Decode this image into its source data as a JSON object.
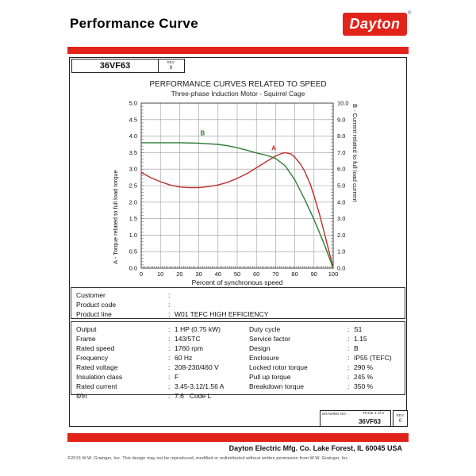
{
  "colors": {
    "brand_red": "#e2231a",
    "torque_red": "#bf2e2e",
    "current_green": "#2e7d33",
    "grid": "#9a9a9a",
    "plot_border": "#444444"
  },
  "header": {
    "title": "Performance Curve",
    "logo_text": "Dayton",
    "logo_reg": "®"
  },
  "doc": {
    "model": "36VF63",
    "rev_label": "REV.",
    "rev_value": "0"
  },
  "chart_data": {
    "type": "line",
    "title": "PERFORMANCE CURVES RELATED TO SPEED",
    "subtitle": "Three-phase Induction Motor - Squirrel Cage",
    "xlabel": "Percent of synchronous speed",
    "grid": true,
    "x_axis": {
      "min": 0,
      "max": 100,
      "step": 10
    },
    "left_axis": {
      "label": "A - Torque related to full load torque",
      "min": 0,
      "max": 5,
      "step": 0.5,
      "color": "#bf2e2e"
    },
    "right_axis": {
      "label": "B - Current related to full load current",
      "min": 0,
      "max": 10,
      "step": 1,
      "color": "#2e7d33"
    },
    "series": [
      {
        "name": "A - Torque related to full load torque",
        "marker_label": "A",
        "axis": "left",
        "color": "#bf2e2e",
        "label_at": {
          "x": 69,
          "y": 3.57
        },
        "points": [
          [
            0,
            2.9
          ],
          [
            5,
            2.74
          ],
          [
            10,
            2.62
          ],
          [
            15,
            2.52
          ],
          [
            20,
            2.46
          ],
          [
            25,
            2.44
          ],
          [
            30,
            2.44
          ],
          [
            35,
            2.47
          ],
          [
            40,
            2.52
          ],
          [
            45,
            2.6
          ],
          [
            50,
            2.72
          ],
          [
            55,
            2.86
          ],
          [
            60,
            3.04
          ],
          [
            65,
            3.22
          ],
          [
            70,
            3.4
          ],
          [
            73,
            3.47
          ],
          [
            75,
            3.5
          ],
          [
            78,
            3.46
          ],
          [
            80,
            3.36
          ],
          [
            83,
            3.15
          ],
          [
            85,
            2.95
          ],
          [
            88,
            2.55
          ],
          [
            90,
            2.2
          ],
          [
            93,
            1.6
          ],
          [
            95,
            1.15
          ],
          [
            97,
            0.7
          ],
          [
            100,
            0.0
          ]
        ]
      },
      {
        "name": "B - Current related to full load current",
        "marker_label": "B",
        "axis": "right",
        "color": "#2e7d33",
        "label_at": {
          "x": 32,
          "y": 8.05
        },
        "points": [
          [
            0,
            7.6
          ],
          [
            10,
            7.6
          ],
          [
            20,
            7.6
          ],
          [
            30,
            7.57
          ],
          [
            40,
            7.5
          ],
          [
            45,
            7.42
          ],
          [
            50,
            7.3
          ],
          [
            55,
            7.15
          ],
          [
            60,
            6.98
          ],
          [
            65,
            6.85
          ],
          [
            70,
            6.65
          ],
          [
            75,
            6.2
          ],
          [
            80,
            5.35
          ],
          [
            85,
            4.2
          ],
          [
            90,
            2.95
          ],
          [
            95,
            1.55
          ],
          [
            100,
            0.0
          ]
        ]
      }
    ]
  },
  "customer_box": {
    "rows": [
      {
        "label": "Customer",
        "value": ""
      },
      {
        "label": "Product code",
        "value": ""
      },
      {
        "label": "Product line",
        "value": "W01 TEFC HIGH EFFICIENCY"
      }
    ]
  },
  "spec_box": {
    "left_rows": [
      {
        "label": "Output",
        "value": "1 HP (0.75 kW)"
      },
      {
        "label": "Frame",
        "value": "143/5TC"
      },
      {
        "label": "Rated speed",
        "value": "1760 rpm"
      },
      {
        "label": "Frequency",
        "value": "60 Hz"
      },
      {
        "label": "Rated voltage",
        "value": "208-230/460 V"
      },
      {
        "label": "Insulation class",
        "value": "F"
      },
      {
        "label": "Rated current",
        "value": "3.45-3.12/1.56 A"
      },
      {
        "label": "Il/In",
        "value": "7.6   Code L"
      }
    ],
    "right_rows": [
      {
        "label": "Duty cycle",
        "value": "S1"
      },
      {
        "label": "Service factor",
        "value": "1.15"
      },
      {
        "label": "Design",
        "value": "B"
      },
      {
        "label": "Enclosure",
        "value": "IP55 (TEFC)"
      },
      {
        "label": "Locked rotor torque",
        "value": "290 %"
      },
      {
        "label": "Pull up torque",
        "value": "245 %"
      },
      {
        "label": "Breakdown torque",
        "value": "350 %"
      }
    ]
  },
  "title_block": {
    "drawing_no_label": "DRAWING NO.",
    "page_label": "PAGE 1 of 2",
    "drawing_no": "36VF63",
    "rev_label": "REV.",
    "rev_value": "0"
  },
  "footer": {
    "company": "Dayton Electric Mfg. Co.  Lake Forest, IL  60045  USA",
    "copyright": "©2015 W.W. Grainger, Inc.   This design may not be reproduced, modified or redistributed without written permission from W.W. Grainger, Inc."
  }
}
